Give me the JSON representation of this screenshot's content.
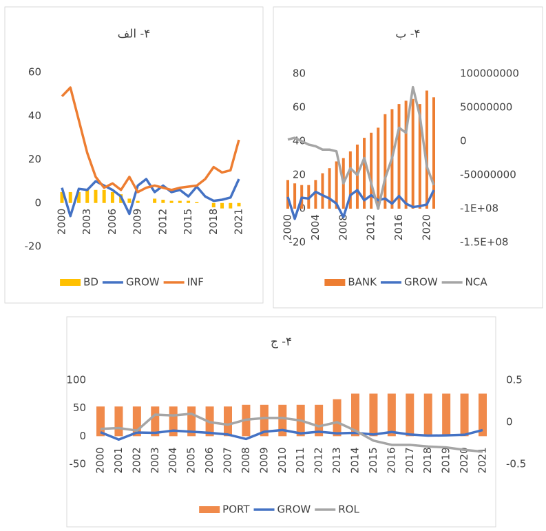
{
  "chart_data": [
    {
      "type": "combo",
      "title": "۴- الف",
      "categories": [
        "2000",
        null,
        null,
        "2003",
        null,
        null,
        "2006",
        null,
        null,
        "2009",
        null,
        null,
        "2012",
        null,
        null,
        "2015",
        null,
        null,
        "2018",
        null,
        null,
        "2021"
      ],
      "ylim": [
        -20,
        60
      ],
      "yticks": [
        -20,
        0,
        20,
        40,
        60
      ],
      "grid": false,
      "legend": "bottom",
      "series": [
        {
          "name": "BD",
          "type": "bar",
          "color": "#ffc000",
          "values": [
            5,
            5,
            5,
            6,
            6,
            6,
            5,
            4,
            2,
            1,
            0,
            2,
            1.5,
            1,
            1,
            1,
            0.5,
            0,
            -2,
            -2.5,
            -2.5,
            -1.5
          ]
        },
        {
          "name": "GROW",
          "type": "line",
          "color": "#4472c4",
          "values": [
            7,
            -6,
            6.5,
            6,
            10,
            8,
            6,
            3,
            -5,
            8,
            11,
            5,
            8,
            5,
            6,
            3,
            7.5,
            3,
            1,
            1.5,
            2.5,
            11
          ]
        },
        {
          "name": "INF",
          "type": "line",
          "color": "#ed7d31",
          "values": [
            49,
            53,
            38,
            23,
            12,
            7,
            9,
            6,
            12,
            5,
            7,
            8,
            7,
            6,
            7,
            7.5,
            8,
            11,
            16.5,
            14,
            15,
            29
          ]
        }
      ]
    },
    {
      "type": "combo",
      "title": "۴- ب",
      "categories": [
        "2000",
        null,
        null,
        null,
        "2004",
        null,
        null,
        null,
        "2008",
        null,
        null,
        null,
        "2012",
        null,
        null,
        null,
        "2016",
        null,
        null,
        null,
        "2020",
        null
      ],
      "ylim": [
        -20,
        80
      ],
      "yticks": [
        -20,
        0,
        20,
        40,
        60,
        80
      ],
      "y2lim": [
        -150000000,
        100000000
      ],
      "y2ticks": [
        {
          "value": -150000000,
          "label": "-1.5E+08"
        },
        {
          "value": -100000000,
          "label": "-1E+08"
        },
        -50000000,
        0,
        50000000,
        100000000
      ],
      "grid": false,
      "legend": "bottom",
      "series": [
        {
          "name": "BANK",
          "type": "bar",
          "color": "#ed7d31",
          "values": [
            17,
            15,
            14,
            14,
            17,
            21,
            24,
            28,
            30,
            34,
            38,
            42,
            45,
            48,
            56,
            59,
            62,
            64,
            65,
            62,
            70,
            66
          ]
        },
        {
          "name": "GROW",
          "type": "line",
          "color": "#4472c4",
          "values": [
            7,
            -6,
            6.5,
            6,
            10,
            8,
            6,
            3,
            -5,
            8,
            11,
            5,
            8,
            5,
            6,
            3,
            7.5,
            3,
            1,
            1.5,
            2.5,
            11
          ]
        },
        {
          "name": "NCA",
          "type": "line",
          "axis": "y2",
          "color": "#a5a5a5",
          "values": [
            2500000,
            5000000,
            0,
            -5000000,
            -7500000,
            -12500000,
            -12500000,
            -15000000,
            -62500000,
            -40000000,
            -50000000,
            -25000000,
            -62500000,
            -100000000,
            -55000000,
            -25000000,
            20000000,
            12500000,
            80000000,
            37500000,
            -37500000,
            -65000000
          ]
        }
      ]
    },
    {
      "type": "combo",
      "title": "۴- ج",
      "categories": [
        "2000",
        "2001",
        "2002",
        "2003",
        "2004",
        "2005",
        "2006",
        "2007",
        "2008",
        "2009",
        "2010",
        "2011",
        "2012",
        "2013",
        "2014",
        "2015",
        "2016",
        "2017",
        "2018",
        "2019",
        "2020",
        "2021"
      ],
      "ylim": [
        -50,
        100
      ],
      "yticks": [
        -50,
        0,
        50,
        100
      ],
      "y2lim": [
        -0.5,
        0.5
      ],
      "y2ticks": [
        -0.5,
        0,
        0.5
      ],
      "grid": false,
      "legend": "bottom",
      "series": [
        {
          "name": "PORT",
          "type": "bar",
          "color": "#f08a4b",
          "values": [
            53,
            53,
            53,
            53,
            53,
            53,
            53,
            53,
            56,
            56,
            56,
            56,
            56,
            66,
            76,
            76,
            76,
            76,
            76,
            76,
            76,
            76
          ]
        },
        {
          "name": "GROW",
          "type": "line",
          "color": "#4472c4",
          "values": [
            7,
            -6,
            6.5,
            6,
            10,
            8,
            6,
            3,
            -5,
            8,
            11,
            5,
            8,
            5,
            6,
            3,
            7.5,
            3,
            1,
            1.5,
            2.5,
            11
          ]
        },
        {
          "name": "ROL",
          "type": "line",
          "axis": "y2",
          "color": "#a5a5a5",
          "values": [
            -0.08,
            -0.07,
            -0.1,
            0.09,
            0.08,
            0.1,
            0,
            -0.03,
            0.03,
            0.05,
            0.05,
            0.02,
            -0.05,
            0,
            -0.1,
            -0.22,
            -0.27,
            -0.27,
            -0.29,
            -0.3,
            -0.33,
            -0.35
          ]
        }
      ]
    }
  ]
}
